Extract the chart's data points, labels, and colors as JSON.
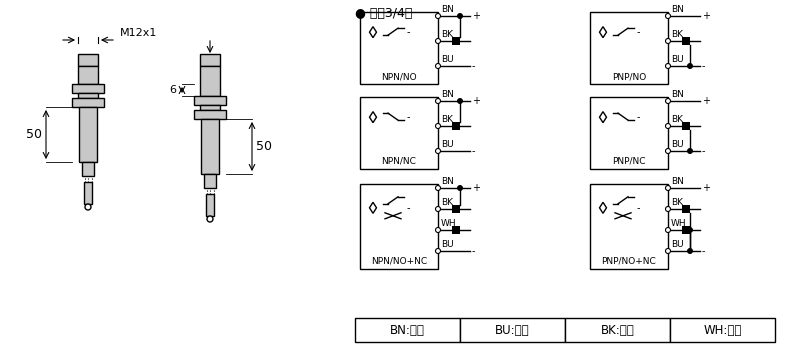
{
  "bg_color": "#ffffff",
  "line_color": "#000000",
  "fill_color": "#c8c8c8",
  "header_bullet": "●",
  "header_text": " 直涁3/4线",
  "dim_label_M12": "M12x1",
  "dim_50": "50",
  "dim_6": "6",
  "wiring_left": [
    "NPN/NO",
    "NPN/NC",
    "NPN/NO+NC"
  ],
  "wiring_right": [
    "PNP/NO",
    "PNP/NC",
    "PNP/NO+NC"
  ],
  "wire3": [
    "BN",
    "BK",
    "BU"
  ],
  "wire4": [
    "BN",
    "BK",
    "WH",
    "BU"
  ],
  "color_table": [
    "BN:棕色",
    "BU:兰色",
    "BK:黑色",
    "WH:白色"
  ],
  "plus": "+",
  "minus": "-"
}
